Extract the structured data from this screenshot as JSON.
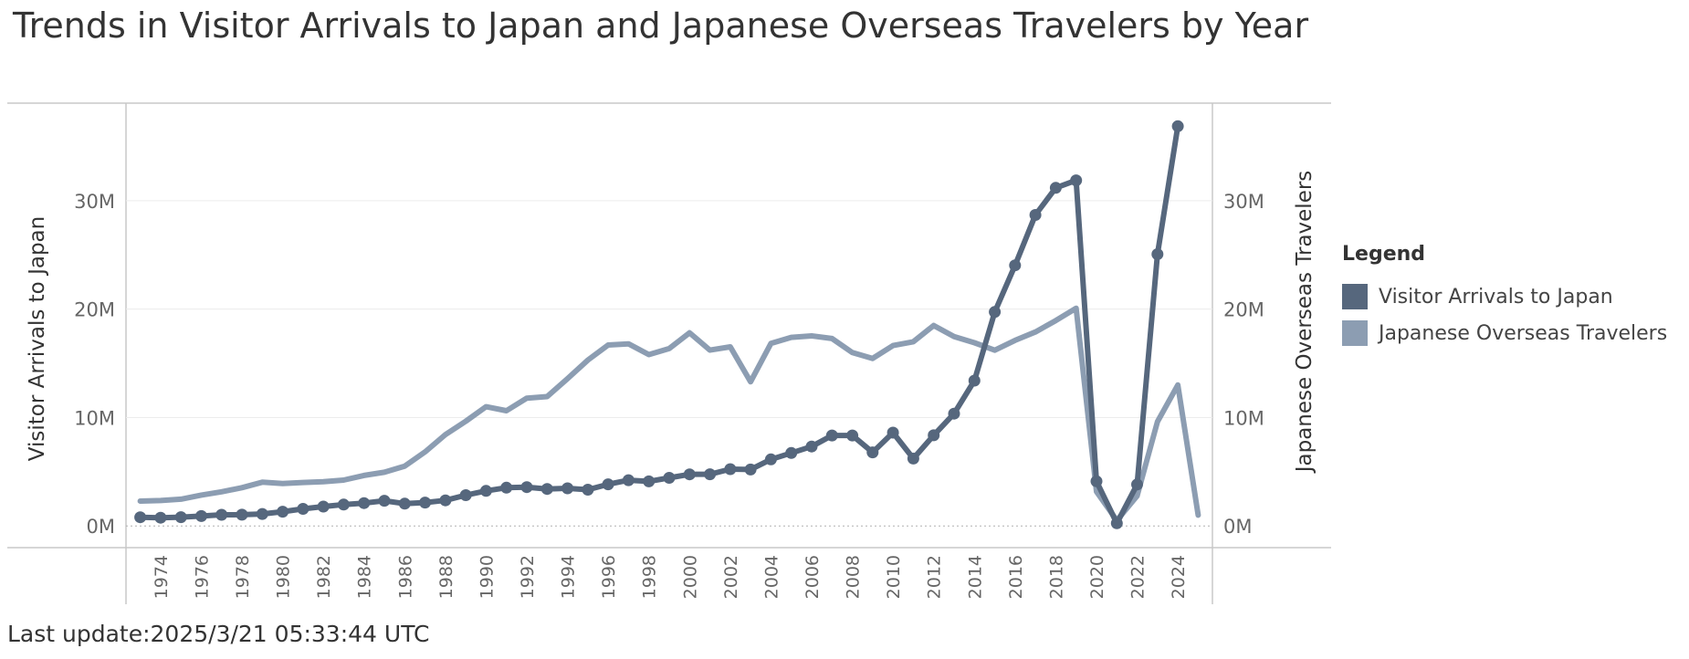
{
  "title": "Trends in Visitor Arrivals to Japan and Japanese Overseas Travelers by Year",
  "last_update": "Last update:2025/3/21 05:33:44 UTC",
  "legend": {
    "title": "Legend",
    "items": [
      {
        "label": "Visitor Arrivals to Japan",
        "color": "#56677d"
      },
      {
        "label": "Japanese Overseas Travelers",
        "color": "#8c9db2"
      }
    ]
  },
  "chart_data": {
    "type": "line",
    "title": "Trends in Visitor Arrivals to Japan and Japanese Overseas Travelers by Year",
    "ylabel": "Visitor Arrivals to Japan",
    "y2label": "Japanese Overseas Travelers",
    "ylim": [
      -2,
      39
    ],
    "yticks": [
      0,
      10,
      20,
      30
    ],
    "ytick_labels": [
      "0M",
      "10M",
      "20M",
      "30M"
    ],
    "xlim": [
      1972.3,
      2025.7
    ],
    "xticks": [
      1974,
      1976,
      1978,
      1980,
      1982,
      1984,
      1986,
      1988,
      1990,
      1992,
      1994,
      1996,
      1998,
      2000,
      2002,
      2004,
      2006,
      2008,
      2010,
      2012,
      2014,
      2016,
      2018,
      2020,
      2022,
      2024
    ],
    "grid": true,
    "legend_position": "right",
    "series": [
      {
        "name": "Visitor Arrivals to Japan",
        "color": "#56677d",
        "markers": true,
        "x": [
          1973,
          1974,
          1975,
          1976,
          1977,
          1978,
          1979,
          1980,
          1981,
          1982,
          1983,
          1984,
          1985,
          1986,
          1987,
          1988,
          1989,
          1990,
          1991,
          1992,
          1993,
          1994,
          1995,
          1996,
          1997,
          1998,
          1999,
          2000,
          2001,
          2002,
          2003,
          2004,
          2005,
          2006,
          2007,
          2008,
          2009,
          2010,
          2011,
          2012,
          2013,
          2014,
          2015,
          2016,
          2017,
          2018,
          2019,
          2020,
          2021,
          2022,
          2023,
          2024
        ],
        "values": [
          0.8,
          0.76,
          0.81,
          0.91,
          1.03,
          1.04,
          1.11,
          1.32,
          1.58,
          1.79,
          1.97,
          2.11,
          2.33,
          2.06,
          2.16,
          2.36,
          2.84,
          3.24,
          3.53,
          3.58,
          3.41,
          3.47,
          3.35,
          3.84,
          4.22,
          4.11,
          4.44,
          4.76,
          4.77,
          5.24,
          5.21,
          6.14,
          6.73,
          7.33,
          8.35,
          8.35,
          6.79,
          8.61,
          6.22,
          8.36,
          10.36,
          13.41,
          19.74,
          24.04,
          28.69,
          31.19,
          31.88,
          4.12,
          0.25,
          3.83,
          25.07,
          36.87
        ]
      },
      {
        "name": "Japanese Overseas Travelers",
        "color": "#8c9db2",
        "markers": false,
        "x": [
          1973,
          1974,
          1975,
          1976,
          1977,
          1978,
          1979,
          1980,
          1981,
          1982,
          1983,
          1984,
          1985,
          1986,
          1987,
          1988,
          1989,
          1990,
          1991,
          1992,
          1993,
          1994,
          1995,
          1996,
          1997,
          1998,
          1999,
          2000,
          2001,
          2002,
          2003,
          2004,
          2005,
          2006,
          2007,
          2008,
          2009,
          2010,
          2011,
          2012,
          2013,
          2014,
          2015,
          2016,
          2017,
          2018,
          2019,
          2020,
          2021,
          2022,
          2023,
          2024,
          2025
        ],
        "values": [
          2.29,
          2.34,
          2.47,
          2.85,
          3.15,
          3.53,
          4.04,
          3.91,
          4.01,
          4.09,
          4.23,
          4.66,
          4.95,
          5.52,
          6.83,
          8.43,
          9.66,
          11.0,
          10.63,
          11.79,
          11.93,
          13.58,
          15.3,
          16.69,
          16.8,
          15.81,
          16.36,
          17.82,
          16.22,
          16.52,
          13.3,
          16.83,
          17.4,
          17.53,
          17.29,
          15.99,
          15.45,
          16.64,
          16.99,
          18.49,
          17.47,
          16.9,
          16.21,
          17.12,
          17.89,
          18.95,
          20.08,
          3.17,
          0.51,
          2.77,
          9.62,
          13.0,
          1.0
        ]
      }
    ]
  }
}
